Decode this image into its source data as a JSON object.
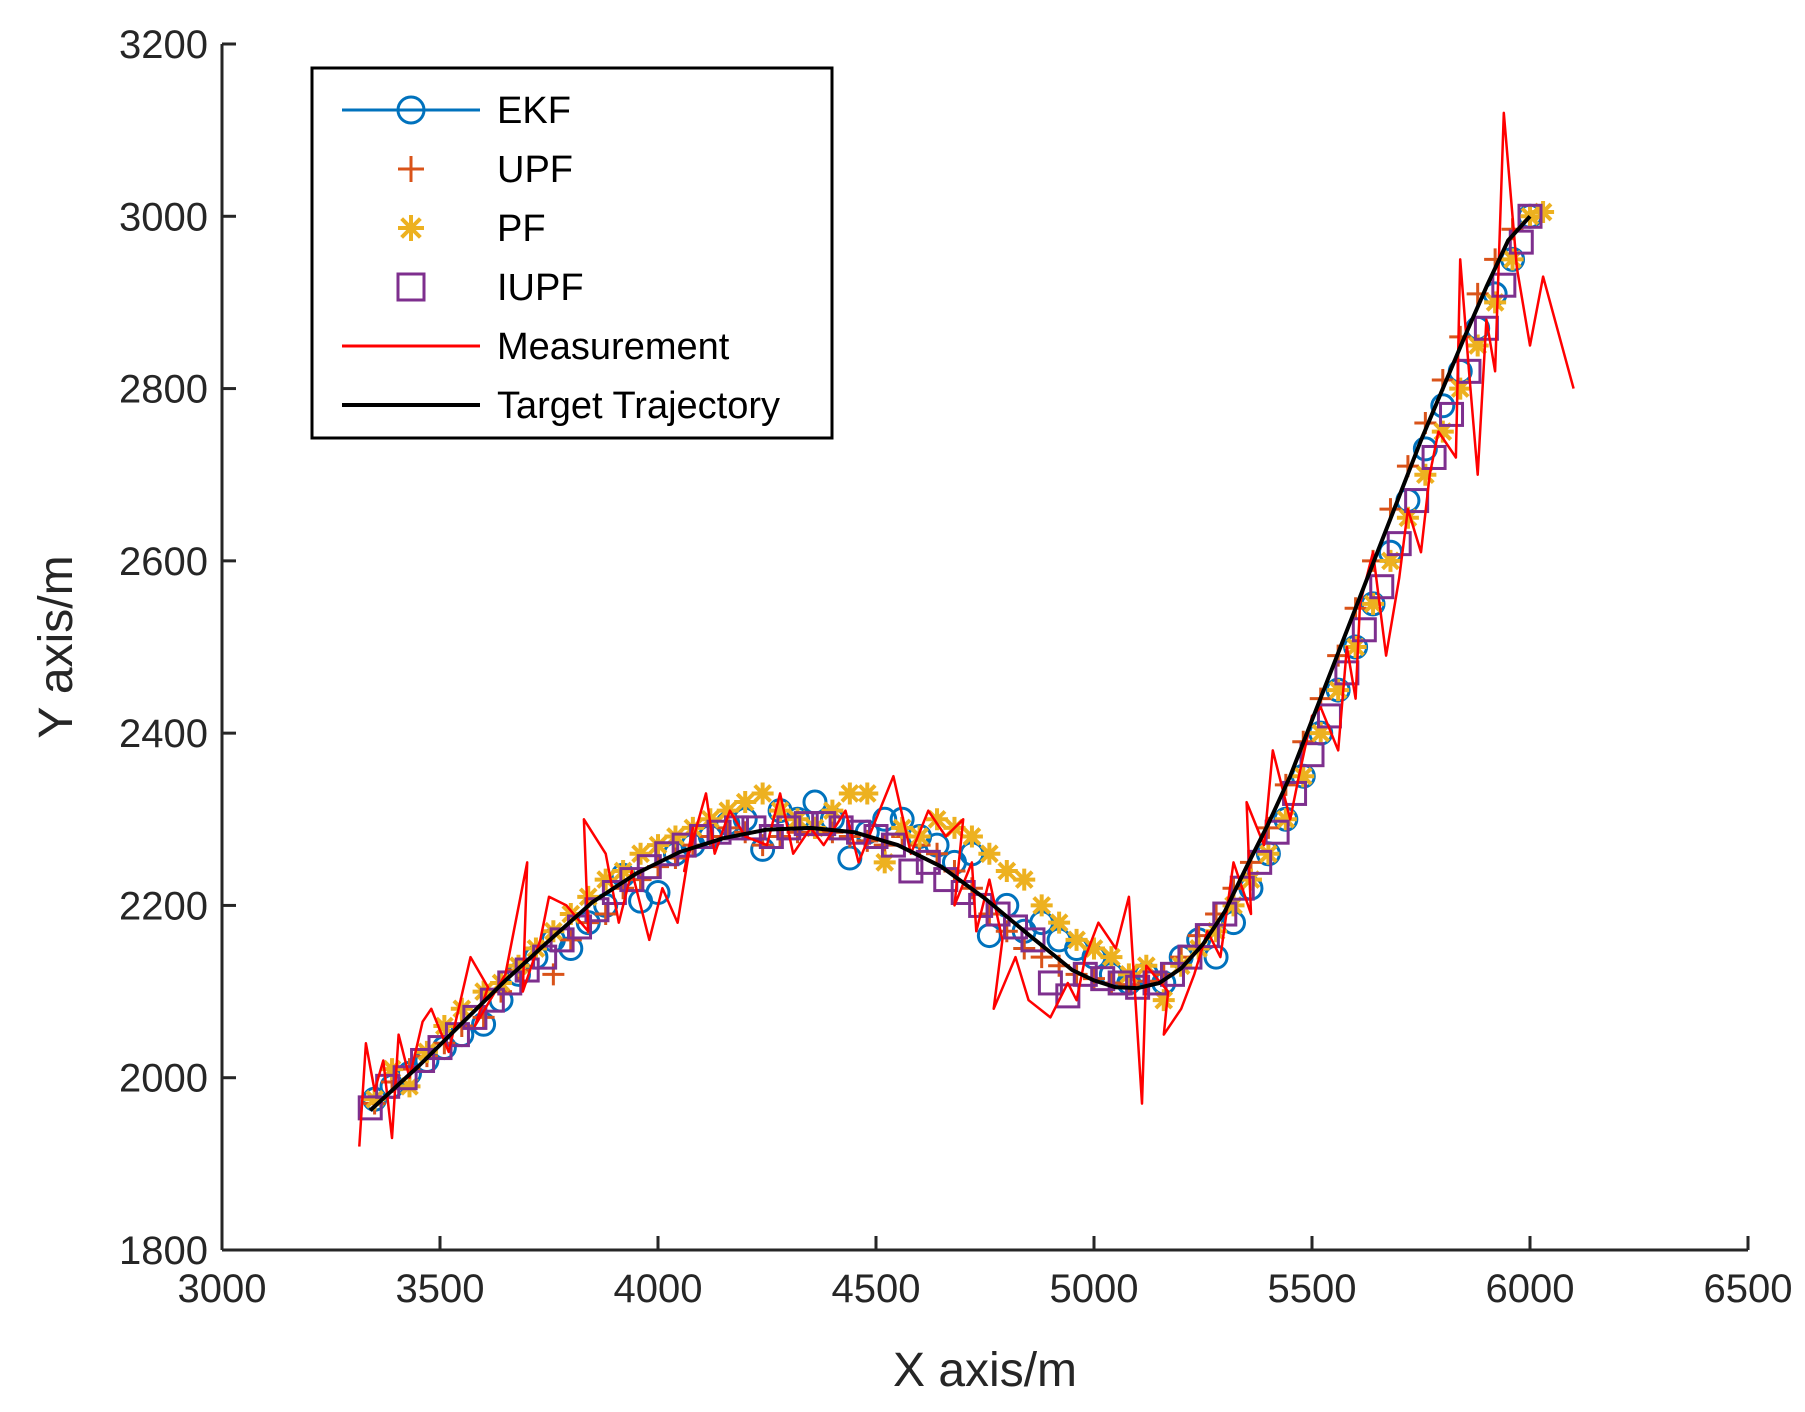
{
  "chart_data": {
    "type": "line",
    "title": "",
    "xlabel": "X axis/m",
    "ylabel": "Y axis/m",
    "xlim": [
      3000,
      6500
    ],
    "ylim": [
      1800,
      3200
    ],
    "xticks": [
      3000,
      3500,
      4000,
      4500,
      5000,
      5500,
      6000,
      6500
    ],
    "yticks": [
      1800,
      2000,
      2200,
      2400,
      2600,
      2800,
      3000,
      3200
    ],
    "grid": false,
    "legend_position": "top-left",
    "colors": {
      "EKF": "#0072BD",
      "UPF": "#D95319",
      "PF": "#EDB120",
      "IUPF": "#7E2F8E",
      "Measurement": "#FF0000",
      "Target Trajectory": "#000000"
    },
    "series": [
      {
        "name": "Target Trajectory",
        "style": "line",
        "x": [
          3340,
          3450,
          3550,
          3650,
          3750,
          3850,
          3950,
          4050,
          4150,
          4250,
          4350,
          4450,
          4550,
          4650,
          4750,
          4850,
          4950,
          5000,
          5050,
          5100,
          5150,
          5200,
          5250,
          5300,
          5350,
          5400,
          5450,
          5500,
          5550,
          5600,
          5650,
          5700,
          5750,
          5800,
          5850,
          5900,
          5950,
          6000
        ],
        "y": [
          1962,
          2013,
          2063,
          2113,
          2159,
          2204,
          2237,
          2262,
          2278,
          2288,
          2290,
          2285,
          2270,
          2245,
          2208,
          2166,
          2125,
          2113,
          2105,
          2104,
          2110,
          2127,
          2155,
          2193,
          2245,
          2295,
          2350,
          2415,
          2480,
          2545,
          2610,
          2675,
          2740,
          2800,
          2860,
          2918,
          2972,
          3000
        ]
      },
      {
        "name": "Measurement",
        "style": "line",
        "x": [
          3315,
          3330,
          3350,
          3370,
          3390,
          3405,
          3430,
          3460,
          3480,
          3520,
          3570,
          3610,
          3580,
          3650,
          3700,
          3690,
          3730,
          3750,
          3790,
          3840,
          3830,
          3880,
          3910,
          3940,
          3980,
          4010,
          4045,
          4080,
          4060,
          4110,
          4130,
          4165,
          4200,
          4250,
          4280,
          4310,
          4350,
          4380,
          4430,
          4460,
          4500,
          4540,
          4580,
          4620,
          4660,
          4700,
          4680,
          4720,
          4730,
          4760,
          4790,
          4770,
          4820,
          4850,
          4900,
          4940,
          4960,
          4980,
          5010,
          5050,
          5080,
          5110,
          5120,
          5170,
          5160,
          5200,
          5230,
          5260,
          5290,
          5320,
          5360,
          5350,
          5390,
          5410,
          5450,
          5470,
          5500,
          5520,
          5560,
          5580,
          5600,
          5610,
          5640,
          5670,
          5700,
          5720,
          5750,
          5770,
          5790,
          5830,
          5840,
          5860,
          5880,
          5900,
          5920,
          5940,
          5970,
          6000,
          6030,
          6100
        ],
        "y": [
          1920,
          2040,
          1985,
          2020,
          1930,
          2050,
          2000,
          2065,
          2080,
          2030,
          2140,
          2105,
          2060,
          2120,
          2250,
          2100,
          2160,
          2210,
          2200,
          2170,
          2300,
          2260,
          2180,
          2240,
          2160,
          2220,
          2180,
          2290,
          2240,
          2330,
          2260,
          2310,
          2280,
          2270,
          2330,
          2260,
          2290,
          2270,
          2310,
          2250,
          2300,
          2350,
          2260,
          2310,
          2280,
          2300,
          2200,
          2250,
          2170,
          2230,
          2160,
          2080,
          2140,
          2090,
          2070,
          2110,
          2090,
          2140,
          2180,
          2150,
          2210,
          1970,
          2130,
          2100,
          2050,
          2080,
          2120,
          2170,
          2140,
          2250,
          2190,
          2320,
          2270,
          2380,
          2300,
          2350,
          2420,
          2430,
          2380,
          2500,
          2440,
          2550,
          2610,
          2490,
          2580,
          2660,
          2610,
          2700,
          2750,
          2720,
          2950,
          2820,
          2700,
          2880,
          2820,
          3120,
          2940,
          2850,
          2930,
          2800
        ]
      },
      {
        "name": "EKF",
        "style": "circle",
        "x": [
          3350,
          3390,
          3430,
          3470,
          3510,
          3550,
          3600,
          3640,
          3680,
          3720,
          3760,
          3800,
          3840,
          3880,
          3920,
          3960,
          4000,
          4040,
          4080,
          4120,
          4160,
          4200,
          4240,
          4280,
          4320,
          4360,
          4400,
          4440,
          4480,
          4520,
          4560,
          4600,
          4640,
          4680,
          4720,
          4760,
          4800,
          4840,
          4880,
          4920,
          4960,
          5000,
          5040,
          5080,
          5120,
          5160,
          5200,
          5240,
          5280,
          5320,
          5360,
          5400,
          5440,
          5480,
          5520,
          5560,
          5600,
          5640,
          5680,
          5720,
          5760,
          5800,
          5840,
          5880,
          5920,
          5960,
          6000
        ],
        "y": [
          1975,
          1990,
          2005,
          2020,
          2035,
          2050,
          2062,
          2090,
          2120,
          2140,
          2160,
          2150,
          2180,
          2200,
          2235,
          2205,
          2215,
          2260,
          2270,
          2280,
          2295,
          2300,
          2265,
          2310,
          2300,
          2320,
          2300,
          2255,
          2285,
          2300,
          2300,
          2280,
          2270,
          2250,
          2260,
          2165,
          2200,
          2170,
          2180,
          2160,
          2150,
          2140,
          2120,
          2110,
          2120,
          2110,
          2140,
          2160,
          2140,
          2180,
          2220,
          2260,
          2300,
          2350,
          2400,
          2450,
          2500,
          2550,
          2610,
          2670,
          2730,
          2780,
          2820,
          2870,
          2910,
          2950,
          3000
        ]
      },
      {
        "name": "UPF",
        "style": "plus",
        "x": [
          3350,
          3390,
          3430,
          3470,
          3510,
          3550,
          3600,
          3640,
          3680,
          3720,
          3760,
          3800,
          3840,
          3880,
          3920,
          3960,
          4000,
          4040,
          4080,
          4120,
          4160,
          4200,
          4240,
          4280,
          4320,
          4360,
          4400,
          4440,
          4480,
          4520,
          4560,
          4600,
          4640,
          4680,
          4720,
          4760,
          4800,
          4840,
          4880,
          4920,
          4960,
          5000,
          5040,
          5080,
          5120,
          5160,
          5200,
          5240,
          5280,
          5320,
          5360,
          5400,
          5440,
          5480,
          5520,
          5560,
          5600,
          5640,
          5680,
          5720,
          5760,
          5800,
          5840,
          5880,
          5920,
          5960,
          6000
        ],
        "y": [
          1970,
          1995,
          2010,
          2025,
          2040,
          2060,
          2070,
          2100,
          2125,
          2150,
          2120,
          2160,
          2180,
          2190,
          2220,
          2230,
          2245,
          2255,
          2270,
          2280,
          2290,
          2285,
          2270,
          2280,
          2285,
          2290,
          2285,
          2280,
          2275,
          2270,
          2280,
          2270,
          2260,
          2240,
          2220,
          2190,
          2170,
          2150,
          2140,
          2130,
          2120,
          2115,
          2110,
          2108,
          2112,
          2120,
          2140,
          2165,
          2190,
          2220,
          2250,
          2290,
          2340,
          2390,
          2440,
          2490,
          2545,
          2600,
          2660,
          2710,
          2760,
          2810,
          2860,
          2910,
          2950,
          2985,
          3000
        ]
      },
      {
        "name": "PF",
        "style": "asterisk",
        "x": [
          3350,
          3390,
          3430,
          3470,
          3510,
          3550,
          3600,
          3640,
          3680,
          3720,
          3760,
          3800,
          3840,
          3880,
          3920,
          3960,
          4000,
          4040,
          4080,
          4120,
          4160,
          4200,
          4240,
          4280,
          4320,
          4360,
          4400,
          4440,
          4480,
          4520,
          4560,
          4600,
          4640,
          4680,
          4720,
          4760,
          4800,
          4840,
          4880,
          4920,
          4960,
          5000,
          5040,
          5080,
          5120,
          5160,
          5200,
          5240,
          5280,
          5320,
          5360,
          5400,
          5440,
          5480,
          5520,
          5560,
          5600,
          5640,
          5680,
          5720,
          5760,
          5800,
          5840,
          5880,
          5920,
          5960,
          6000,
          6030
        ],
        "y": [
          1975,
          2010,
          1990,
          2030,
          2060,
          2080,
          2100,
          2110,
          2130,
          2150,
          2170,
          2190,
          2210,
          2230,
          2240,
          2260,
          2270,
          2280,
          2290,
          2300,
          2310,
          2320,
          2330,
          2310,
          2300,
          2290,
          2310,
          2330,
          2330,
          2250,
          2290,
          2280,
          2300,
          2290,
          2280,
          2260,
          2240,
          2230,
          2200,
          2180,
          2160,
          2150,
          2140,
          2120,
          2130,
          2090,
          2130,
          2150,
          2170,
          2200,
          2230,
          2260,
          2300,
          2350,
          2400,
          2450,
          2500,
          2550,
          2600,
          2650,
          2700,
          2750,
          2800,
          2850,
          2900,
          2950,
          3000,
          3005
        ]
      },
      {
        "name": "IUPF",
        "style": "square",
        "x": [
          3340,
          3380,
          3420,
          3460,
          3500,
          3540,
          3580,
          3620,
          3660,
          3700,
          3740,
          3780,
          3820,
          3860,
          3900,
          3940,
          3980,
          4020,
          4060,
          4100,
          4140,
          4180,
          4220,
          4260,
          4300,
          4340,
          4380,
          4420,
          4460,
          4500,
          4540,
          4580,
          4620,
          4660,
          4700,
          4740,
          4780,
          4820,
          4860,
          4900,
          4940,
          4980,
          5020,
          5060,
          5100,
          5140,
          5180,
          5220,
          5260,
          5300,
          5340,
          5380,
          5420,
          5460,
          5500,
          5540,
          5580,
          5620,
          5660,
          5700,
          5740,
          5780,
          5820,
          5860,
          5900,
          5940,
          5980,
          6000
        ],
        "y": [
          1965,
          1990,
          2000,
          2020,
          2035,
          2050,
          2070,
          2090,
          2110,
          2125,
          2140,
          2160,
          2175,
          2195,
          2215,
          2230,
          2245,
          2260,
          2270,
          2280,
          2285,
          2290,
          2290,
          2280,
          2290,
          2295,
          2295,
          2290,
          2285,
          2280,
          2270,
          2240,
          2250,
          2230,
          2215,
          2200,
          2190,
          2175,
          2160,
          2110,
          2095,
          2120,
          2115,
          2110,
          2105,
          2110,
          2120,
          2140,
          2165,
          2190,
          2220,
          2250,
          2285,
          2330,
          2375,
          2420,
          2470,
          2520,
          2570,
          2620,
          2670,
          2720,
          2770,
          2820,
          2870,
          2920,
          2970,
          3000
        ]
      }
    ]
  }
}
